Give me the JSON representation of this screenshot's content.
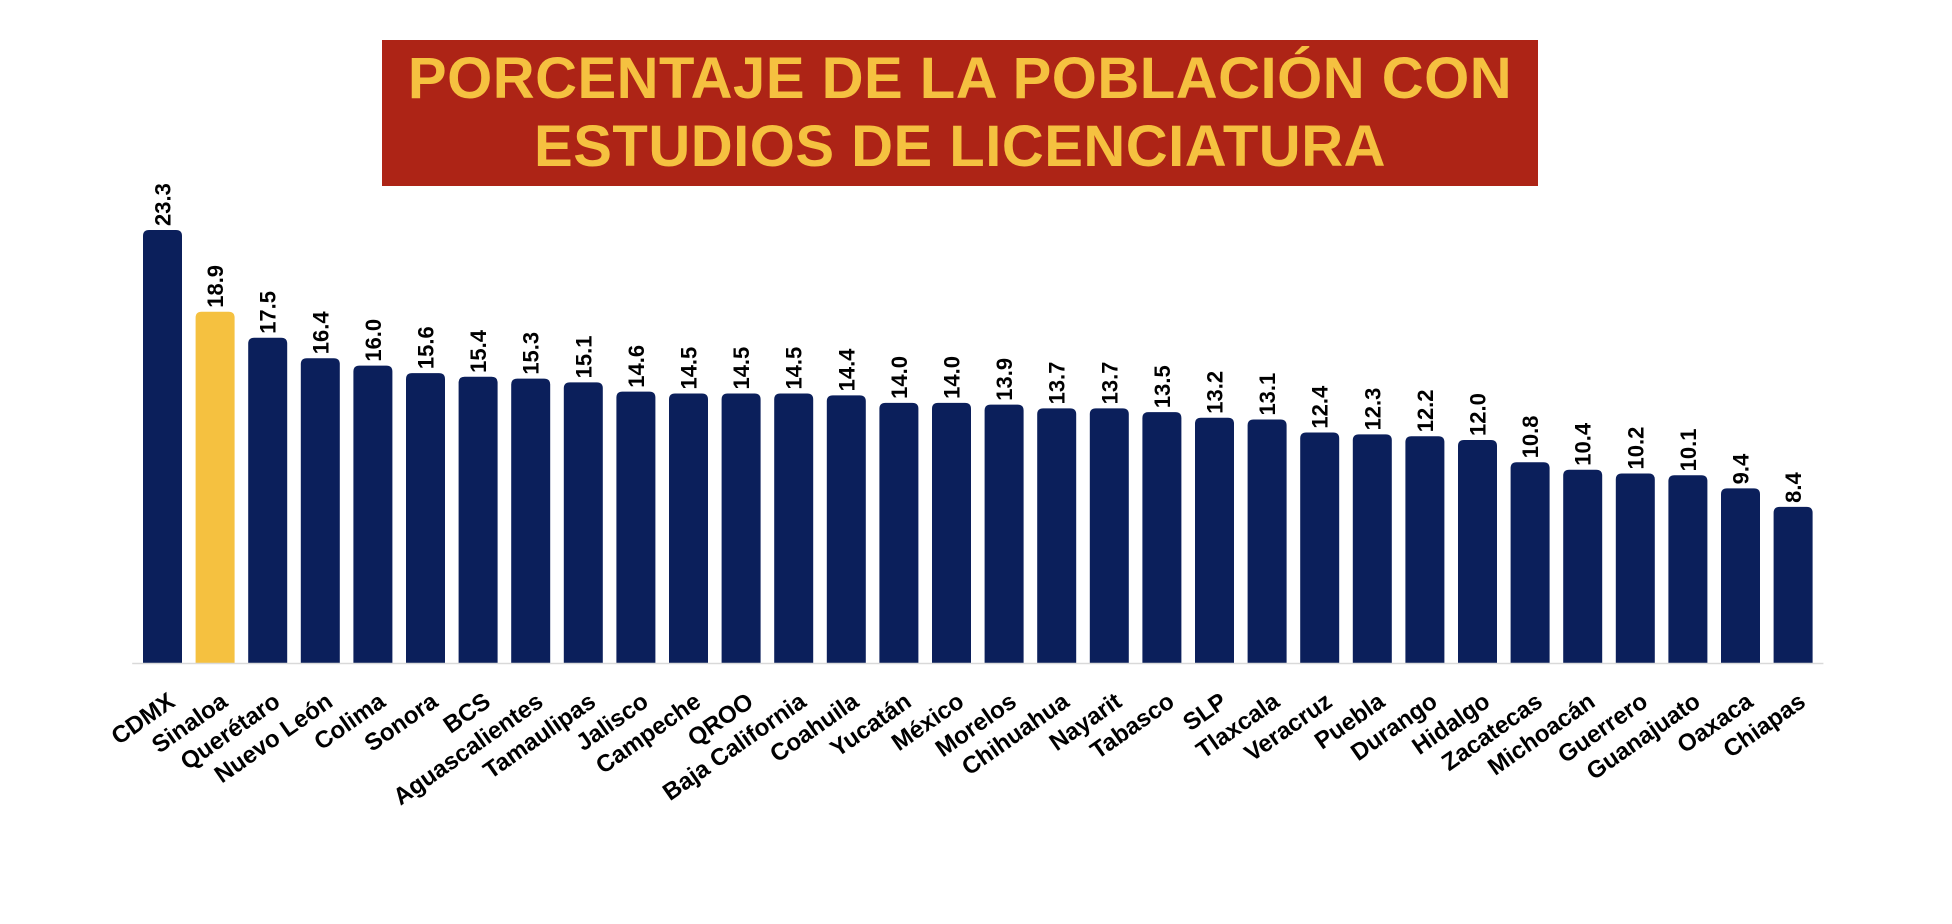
{
  "chart_data": {
    "type": "bar",
    "title_lines": [
      "PORCENTAJE DE LA POBLACIÓN CON",
      "ESTUDIOS DE LICENCIATURA"
    ],
    "xlabel": "",
    "ylabel": "",
    "ylim": [
      0,
      23.3
    ],
    "grid": false,
    "legend": "none",
    "categories": [
      "CDMX",
      "Sinaloa",
      "Querétaro",
      "Nuevo León",
      "Colima",
      "Sonora",
      "BCS",
      "Aguascalientes",
      "Tamaulipas",
      "Jalisco",
      "Campeche",
      "QROO",
      "Baja California",
      "Coahuila",
      "Yucatán",
      "México",
      "Morelos",
      "Chihuahua",
      "Nayarit",
      "Tabasco",
      "SLP",
      "Tlaxcala",
      "Veracruz",
      "Puebla",
      "Durango",
      "Hidalgo",
      "Zacatecas",
      "Michoacán",
      "Guerrero",
      "Guanajuato",
      "Oaxaca",
      "Chiapas"
    ],
    "values": [
      23.3,
      18.9,
      17.5,
      16.4,
      16.0,
      15.6,
      15.4,
      15.3,
      15.1,
      14.6,
      14.5,
      14.5,
      14.5,
      14.4,
      14.0,
      14.0,
      13.9,
      13.7,
      13.7,
      13.5,
      13.2,
      13.1,
      12.4,
      12.3,
      12.2,
      12.0,
      10.8,
      10.4,
      10.2,
      10.1,
      9.4,
      8.4
    ],
    "value_labels": [
      "23.3",
      "18.9",
      "17.5",
      "16.4",
      "16.0",
      "15.6",
      "15.4",
      "15.3",
      "15.1",
      "14.6",
      "14.5",
      "14.5",
      "14.5",
      "14.4",
      "14.0",
      "14.0",
      "13.9",
      "13.7",
      "13.7",
      "13.5",
      "13.2",
      "13.1",
      "12.4",
      "12.3",
      "12.2",
      "12.0",
      "10.8",
      "10.4",
      "10.2",
      "10.1",
      "9.4",
      "8.4"
    ],
    "highlight_category": "Sinaloa"
  },
  "colors": {
    "bar": "#0b1f5b",
    "highlight": "#f5c140",
    "title_bg": "#ad2416",
    "title_text": "#f5c140",
    "label_text": "#000000",
    "axis_line": "#d9d9d9"
  }
}
